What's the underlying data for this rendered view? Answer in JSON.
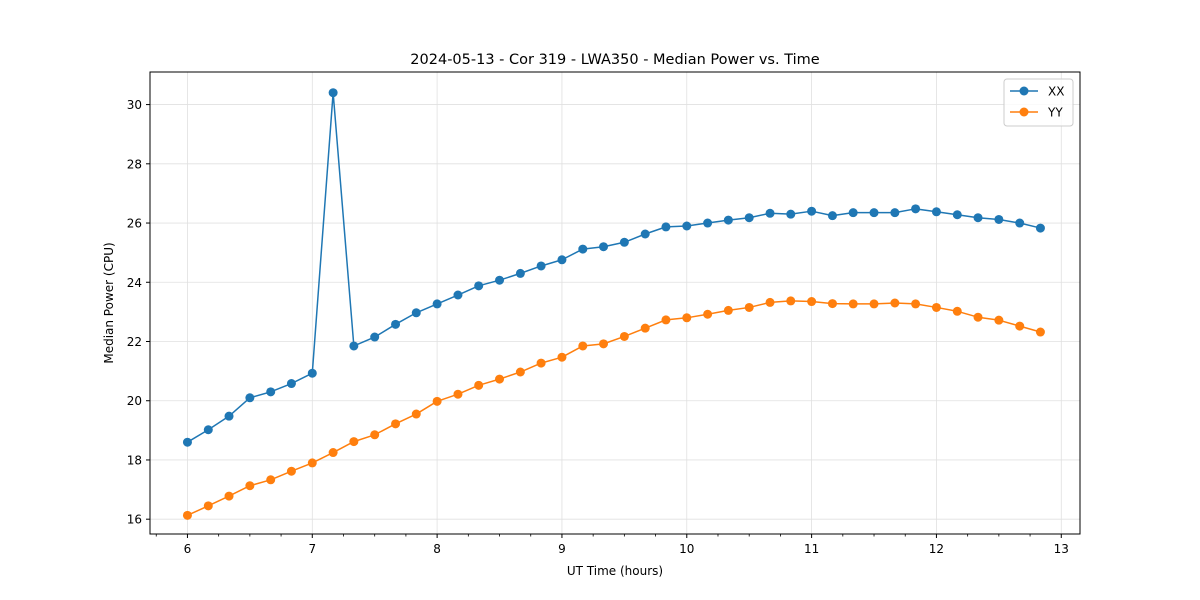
{
  "chart_data": {
    "type": "line",
    "title": "2024-05-13 - Cor 319 - LWA350 - Median Power vs. Time",
    "xlabel": "UT Time (hours)",
    "ylabel": "Median Power (CPU)",
    "xlim": [
      5.7,
      13.15
    ],
    "ylim": [
      15.5,
      31.1
    ],
    "xticks": [
      6,
      7,
      8,
      9,
      10,
      11,
      12,
      13
    ],
    "yticks": [
      16,
      18,
      20,
      22,
      24,
      26,
      28,
      30
    ],
    "grid": true,
    "legend_position": "top-right",
    "x": [
      6.0,
      6.167,
      6.333,
      6.5,
      6.667,
      6.833,
      7.0,
      7.167,
      7.333,
      7.5,
      7.667,
      7.833,
      8.0,
      8.167,
      8.333,
      8.5,
      8.667,
      8.833,
      9.0,
      9.167,
      9.333,
      9.5,
      9.667,
      9.833,
      10.0,
      10.167,
      10.333,
      10.5,
      10.667,
      10.833,
      11.0,
      11.167,
      11.333,
      11.5,
      11.667,
      11.833,
      12.0,
      12.167,
      12.333,
      12.5,
      12.667,
      12.833
    ],
    "series": [
      {
        "name": "XX",
        "color": "#1f77b4",
        "values": [
          18.6,
          19.02,
          19.48,
          20.1,
          20.3,
          20.58,
          20.93,
          30.4,
          21.85,
          22.15,
          22.58,
          22.97,
          23.27,
          23.57,
          23.88,
          24.07,
          24.3,
          24.55,
          24.76,
          25.12,
          25.2,
          25.35,
          25.63,
          25.87,
          25.9,
          26.0,
          26.1,
          26.18,
          26.33,
          26.3,
          26.4,
          26.25,
          26.35,
          26.35,
          26.35,
          26.48,
          26.38,
          26.28,
          26.18,
          26.12,
          26.0,
          25.83
        ]
      },
      {
        "name": "YY",
        "color": "#ff7f0e",
        "values": [
          16.13,
          16.45,
          16.78,
          17.13,
          17.33,
          17.62,
          17.9,
          18.25,
          18.62,
          18.85,
          19.22,
          19.55,
          19.98,
          20.22,
          20.52,
          20.73,
          20.97,
          21.27,
          21.47,
          21.85,
          21.92,
          22.17,
          22.45,
          22.73,
          22.8,
          22.92,
          23.05,
          23.15,
          23.32,
          23.37,
          23.35,
          23.28,
          23.27,
          23.27,
          23.3,
          23.27,
          23.15,
          23.02,
          22.82,
          22.72,
          22.52,
          22.32
        ]
      }
    ]
  }
}
